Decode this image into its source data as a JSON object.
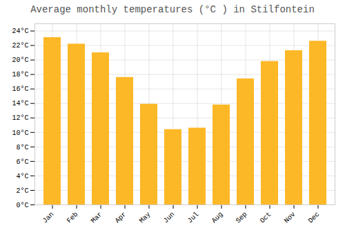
{
  "chart_data": {
    "type": "bar",
    "title": "Average monthly temperatures (°C ) in Stilfontein",
    "categories": [
      "Jan",
      "Feb",
      "Mar",
      "Apr",
      "May",
      "Jun",
      "Jul",
      "Aug",
      "Sep",
      "Oct",
      "Nov",
      "Dec"
    ],
    "values": [
      23.1,
      22.2,
      21.0,
      17.6,
      13.9,
      10.4,
      10.6,
      13.8,
      17.4,
      19.8,
      21.3,
      22.6
    ],
    "color": "#FDB827",
    "ylim": [
      0,
      25
    ],
    "yticks": [
      {
        "value": 0,
        "label": "0°C"
      },
      {
        "value": 2,
        "label": "2°C"
      },
      {
        "value": 4,
        "label": "4°C"
      },
      {
        "value": 6,
        "label": "6°C"
      },
      {
        "value": 8,
        "label": "8°C"
      },
      {
        "value": 10,
        "label": "10°C"
      },
      {
        "value": 12,
        "label": "12°C"
      },
      {
        "value": 14,
        "label": "14°C"
      },
      {
        "value": 16,
        "label": "16°C"
      },
      {
        "value": 18,
        "label": "18°C"
      },
      {
        "value": 20,
        "label": "20°C"
      },
      {
        "value": 22,
        "label": "22°C"
      },
      {
        "value": 24,
        "label": "24°C"
      }
    ],
    "grid": true
  }
}
